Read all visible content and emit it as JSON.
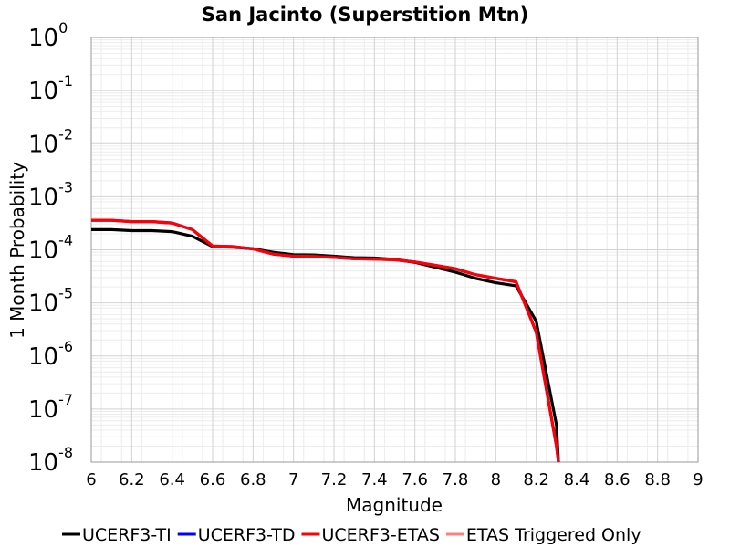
{
  "chart_data": {
    "type": "line",
    "title": "San Jacinto (Superstition Mtn)",
    "xlabel": "Magnitude",
    "ylabel": "1 Month Probability",
    "xlim": [
      6,
      9
    ],
    "x_ticks": [
      "6",
      "6.2",
      "6.4",
      "6.6",
      "6.8",
      "7",
      "7.2",
      "7.4",
      "7.6",
      "7.8",
      "8",
      "8.2",
      "8.4",
      "8.6",
      "8.8",
      "9"
    ],
    "y_scale": "log",
    "ylim": [
      1e-08,
      1
    ],
    "y_ticks": [
      {
        "base": "10",
        "exp": "0"
      },
      {
        "base": "10",
        "exp": "-1"
      },
      {
        "base": "10",
        "exp": "-2"
      },
      {
        "base": "10",
        "exp": "-3"
      },
      {
        "base": "10",
        "exp": "-4"
      },
      {
        "base": "10",
        "exp": "-5"
      },
      {
        "base": "10",
        "exp": "-6"
      },
      {
        "base": "10",
        "exp": "-7"
      },
      {
        "base": "10",
        "exp": "-8"
      }
    ],
    "grid": true,
    "legend_position": "bottom",
    "series": [
      {
        "name": "UCERF3-TI",
        "color": "#000000",
        "x": [
          6.0,
          6.1,
          6.2,
          6.3,
          6.4,
          6.5,
          6.6,
          6.7,
          6.8,
          6.9,
          7.0,
          7.1,
          7.2,
          7.3,
          7.4,
          7.5,
          7.6,
          7.7,
          7.8,
          7.9,
          8.0,
          8.1,
          8.2,
          8.3,
          8.31
        ],
        "y": [
          0.00024,
          0.00024,
          0.00023,
          0.00023,
          0.00022,
          0.00018,
          0.000115,
          0.000112,
          0.000105,
          9e-05,
          8.1e-05,
          8e-05,
          7.6e-05,
          7.1e-05,
          7e-05,
          6.6e-05,
          5.8e-05,
          4.7e-05,
          3.8e-05,
          2.9e-05,
          2.4e-05,
          2.1e-05,
          4.5e-06,
          5e-08,
          1e-08
        ]
      },
      {
        "name": "UCERF3-TD",
        "color": "#0000ff",
        "x": [
          6.0,
          6.1,
          6.2,
          6.3,
          6.4,
          6.5,
          6.6,
          6.7,
          6.8,
          6.9,
          7.0,
          7.1,
          7.2,
          7.3,
          7.4,
          7.5,
          7.6,
          7.7,
          7.8,
          7.9,
          8.0,
          8.1,
          8.2,
          8.3,
          8.31
        ],
        "y": [
          0.00036,
          0.00036,
          0.00034,
          0.00034,
          0.00032,
          0.00024,
          0.000118,
          0.000115,
          0.000104,
          8.3e-05,
          7.6e-05,
          7.5e-05,
          7.2e-05,
          6.8e-05,
          6.7e-05,
          6.5e-05,
          5.9e-05,
          5.1e-05,
          4.4e-05,
          3.4e-05,
          2.9e-05,
          2.5e-05,
          2.8e-06,
          2e-08,
          1e-08
        ]
      },
      {
        "name": "UCERF3-ETAS",
        "color": "#ff0000",
        "x": [
          6.0,
          6.1,
          6.2,
          6.3,
          6.4,
          6.5,
          6.6,
          6.7,
          6.8,
          6.9,
          7.0,
          7.1,
          7.2,
          7.3,
          7.4,
          7.5,
          7.6,
          7.7,
          7.8,
          7.9,
          8.0,
          8.1,
          8.2,
          8.3,
          8.31
        ],
        "y": [
          0.00036,
          0.00036,
          0.00034,
          0.00034,
          0.00032,
          0.00024,
          0.000118,
          0.000115,
          0.000104,
          8.3e-05,
          7.6e-05,
          7.5e-05,
          7.2e-05,
          6.8e-05,
          6.7e-05,
          6.5e-05,
          5.9e-05,
          5.1e-05,
          4.4e-05,
          3.4e-05,
          2.9e-05,
          2.5e-05,
          2.8e-06,
          2e-08,
          1e-08
        ]
      },
      {
        "name": "ETAS Triggered Only",
        "color": "#ff8080",
        "x": [],
        "y": []
      }
    ]
  }
}
